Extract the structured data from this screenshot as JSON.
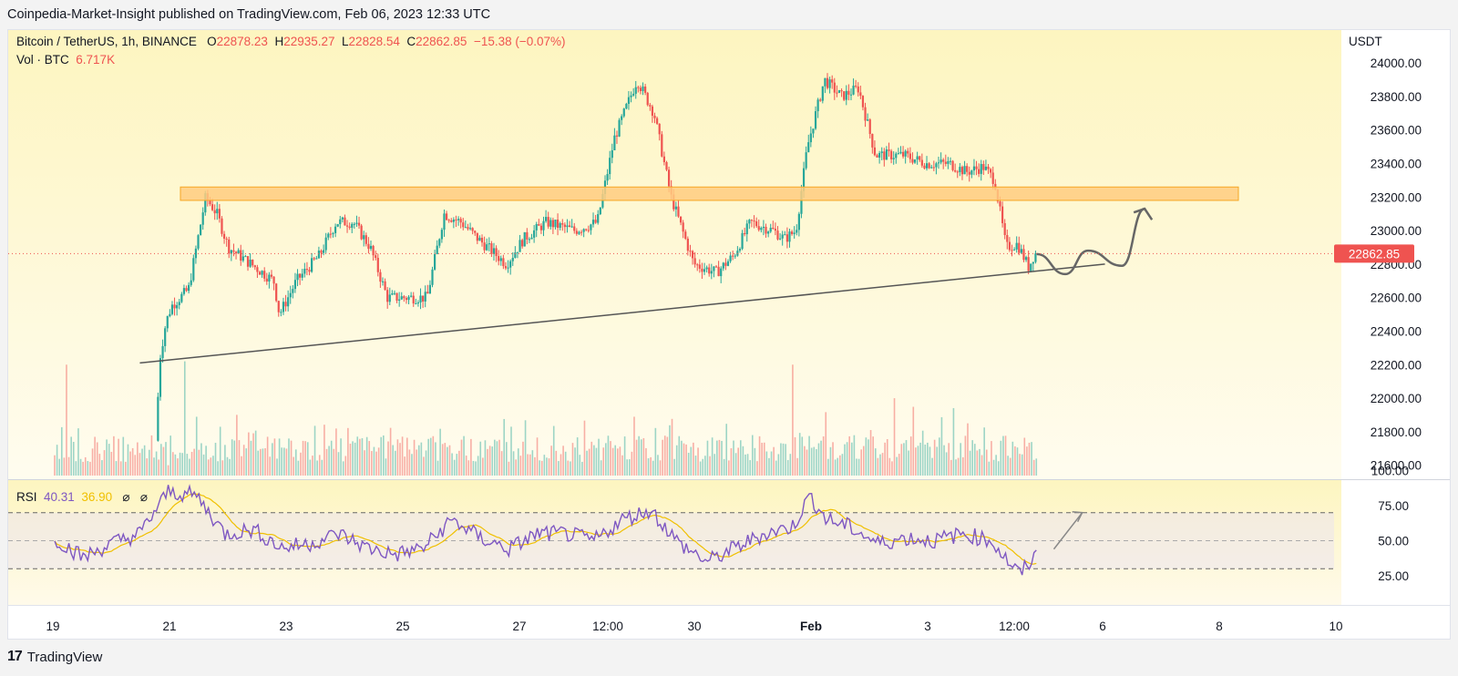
{
  "header": {
    "attribution": "Coinpedia-Market-Insight published on TradingView.com, Feb 06, 2023 12:33 UTC"
  },
  "legend": {
    "symbol": "Bitcoin / TetherUS, 1h, BINANCE",
    "o_label": "O",
    "o": "22878.23",
    "h_label": "H",
    "h": "22935.27",
    "l_label": "L",
    "l": "22828.54",
    "c_label": "C",
    "c": "22862.85",
    "change": "−15.38 (−0.07%)",
    "vol_label": "Vol · BTC",
    "vol": "6.717K",
    "rsi_label": "RSI",
    "rsi": "40.31",
    "rsi_ma": "36.90",
    "hidden1": "⌀",
    "hidden2": "⌀"
  },
  "price_axis": {
    "currency": "USDT",
    "last_price": "22862.85"
  },
  "brand": {
    "name": "TradingView",
    "logo_text": "17"
  },
  "colors": {
    "up": "#26a69a",
    "down": "#ef5350",
    "rsi": "#7e57c2",
    "rsi_ma": "#f0c000",
    "zone": "#ffcc80",
    "zone_border": "#f5a623",
    "bg_top": "#fdf5c0",
    "bg_bottom": "#fffbea"
  },
  "chart_data": [
    {
      "type": "candlestick",
      "title": "Bitcoin / TetherUS, 1h, BINANCE",
      "ylabel": "USDT",
      "ylim": [
        21560,
        24180
      ],
      "yticks": [
        21600,
        21800,
        22000,
        22200,
        22400,
        22600,
        22800,
        23000,
        23200,
        23400,
        23600,
        23800,
        24000
      ],
      "xticks": [
        "19",
        "21",
        "23",
        "25",
        "27",
        "12:00",
        "30",
        "Feb",
        "3",
        "12:00",
        "6",
        "8",
        "10"
      ],
      "x_range_days": [
        18.5,
        10.7
      ],
      "price_path": [
        [
          19.0,
          21600
        ],
        [
          20.8,
          21620
        ],
        [
          20.9,
          22250
        ],
        [
          21.0,
          22450
        ],
        [
          21.1,
          22550
        ],
        [
          21.4,
          22650
        ],
        [
          21.7,
          23200
        ],
        [
          21.9,
          23100
        ],
        [
          22.1,
          22900
        ],
        [
          22.5,
          22800
        ],
        [
          22.9,
          22700
        ],
        [
          23.0,
          22500
        ],
        [
          23.3,
          22700
        ],
        [
          23.7,
          22850
        ],
        [
          24.0,
          23050
        ],
        [
          24.3,
          23050
        ],
        [
          24.6,
          22900
        ],
        [
          24.9,
          22600
        ],
        [
          25.3,
          22600
        ],
        [
          25.6,
          22600
        ],
        [
          25.9,
          23100
        ],
        [
          26.2,
          23050
        ],
        [
          26.5,
          22950
        ],
        [
          27.0,
          22800
        ],
        [
          27.3,
          22950
        ],
        [
          27.7,
          23050
        ],
        [
          28.2,
          23000
        ],
        [
          28.6,
          23050
        ],
        [
          28.9,
          23550
        ],
        [
          29.3,
          23900
        ],
        [
          29.6,
          23700
        ],
        [
          29.9,
          23200
        ],
        [
          30.3,
          22800
        ],
        [
          30.7,
          22750
        ],
        [
          31.0,
          22850
        ],
        [
          31.3,
          23050
        ],
        [
          31.7,
          23000
        ],
        [
          31.9,
          22950
        ],
        [
          32.1,
          23000
        ],
        [
          32.3,
          23500
        ],
        [
          32.6,
          23900
        ],
        [
          32.9,
          23800
        ],
        [
          33.2,
          23850
        ],
        [
          33.5,
          23450
        ],
        [
          34.0,
          23450
        ],
        [
          34.4,
          23400
        ],
        [
          34.8,
          23400
        ],
        [
          35.1,
          23350
        ],
        [
          35.4,
          23380
        ],
        [
          35.6,
          23300
        ],
        [
          35.8,
          22900
        ],
        [
          36.0,
          22920
        ],
        [
          36.2,
          22780
        ],
        [
          36.3,
          22862.85
        ]
      ],
      "horizontal_zone": {
        "from": 23180,
        "to": 23260
      },
      "trendline": [
        [
          20.5,
          22210
        ],
        [
          37.5,
          22800
        ]
      ],
      "projection": [
        [
          36.3,
          22860
        ],
        [
          36.8,
          22740
        ],
        [
          37.2,
          22880
        ],
        [
          37.8,
          22790
        ],
        [
          38.2,
          23130
        ]
      ],
      "last_price_label": 22862.85
    },
    {
      "type": "bar",
      "series": [
        {
          "name": "Vol · BTC",
          "last": "6.717K"
        }
      ],
      "spikes": [
        [
          19.2,
          22200
        ],
        [
          21.0,
          21600
        ],
        [
          21.3,
          22220
        ],
        [
          32.0,
          22200
        ],
        [
          33.8,
          22000
        ],
        [
          35.1,
          21850
        ]
      ]
    },
    {
      "type": "line",
      "title": "RSI",
      "ylim": [
        25,
        100
      ],
      "yticks": [
        25,
        50,
        75,
        100
      ],
      "bands": [
        30,
        50,
        70
      ],
      "series": [
        {
          "name": "RSI",
          "last": 40.31
        },
        {
          "name": "RSI MA",
          "last": 36.9
        }
      ],
      "rsi_path": [
        [
          19.0,
          52
        ],
        [
          19.5,
          38
        ],
        [
          20.0,
          48
        ],
        [
          20.5,
          55
        ],
        [
          21.0,
          85
        ],
        [
          21.5,
          82
        ],
        [
          22.0,
          55
        ],
        [
          22.5,
          58
        ],
        [
          23.0,
          45
        ],
        [
          23.5,
          48
        ],
        [
          24.0,
          55
        ],
        [
          24.5,
          45
        ],
        [
          25.0,
          40
        ],
        [
          25.5,
          45
        ],
        [
          26.0,
          65
        ],
        [
          26.5,
          52
        ],
        [
          27.0,
          44
        ],
        [
          27.5,
          55
        ],
        [
          28.0,
          55
        ],
        [
          28.5,
          50
        ],
        [
          29.0,
          65
        ],
        [
          29.5,
          72
        ],
        [
          30.0,
          48
        ],
        [
          30.5,
          35
        ],
        [
          31.0,
          45
        ],
        [
          31.5,
          55
        ],
        [
          32.0,
          60
        ],
        [
          32.3,
          82
        ],
        [
          32.6,
          65
        ],
        [
          33.0,
          60
        ],
        [
          33.5,
          48
        ],
        [
          34.0,
          52
        ],
        [
          34.5,
          50
        ],
        [
          35.0,
          55
        ],
        [
          35.5,
          50
        ],
        [
          35.8,
          35
        ],
        [
          36.0,
          26
        ],
        [
          36.3,
          40.31
        ]
      ],
      "projection": [
        [
          36.6,
          44
        ],
        [
          37.1,
          70
        ]
      ]
    }
  ]
}
